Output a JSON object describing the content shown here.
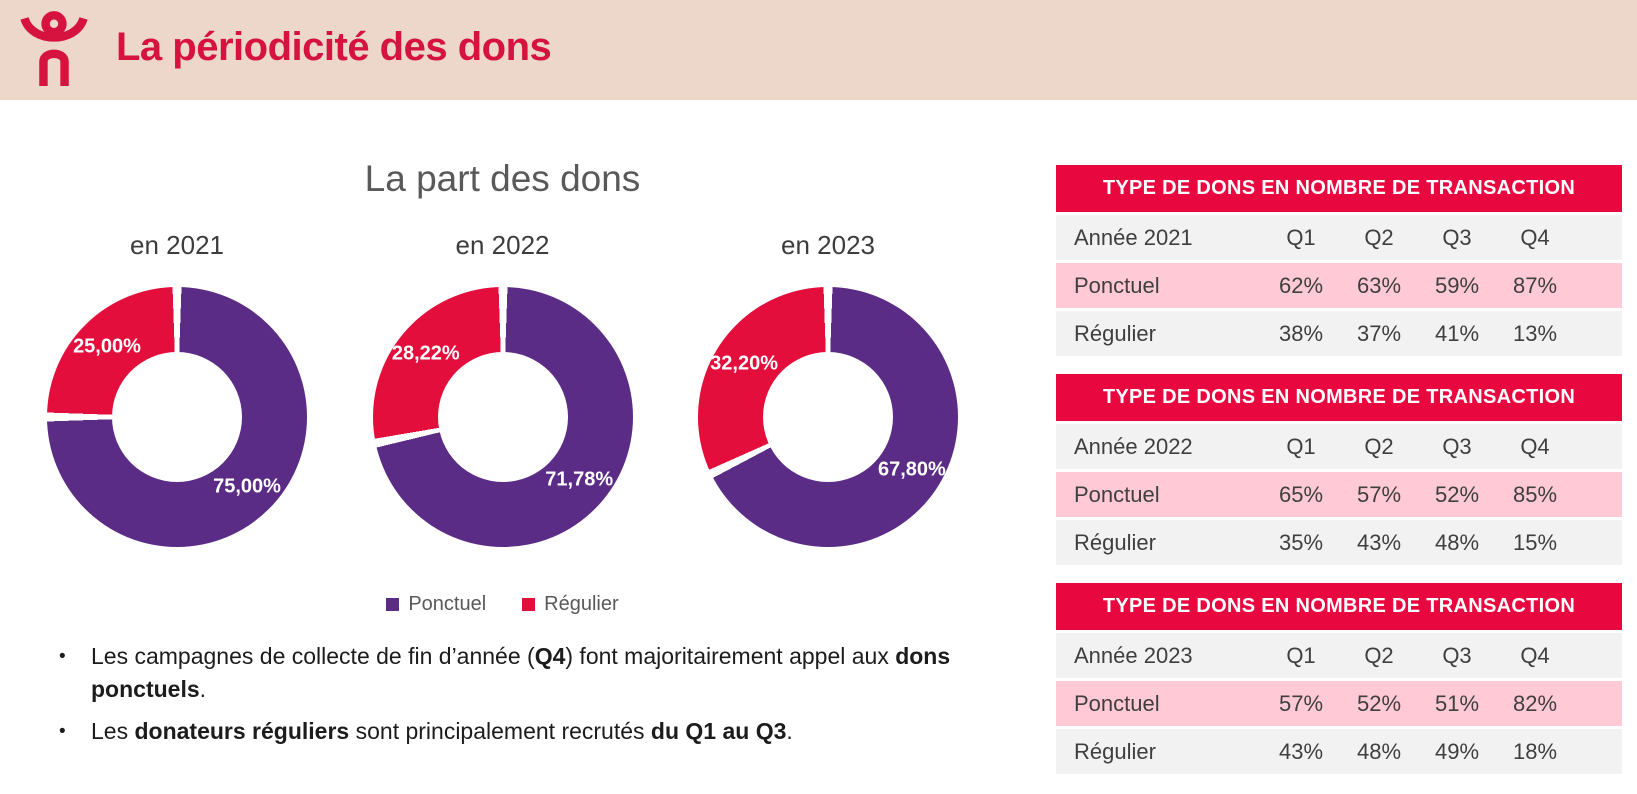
{
  "header": {
    "title": "La périodicité des dons",
    "icon": "person-raised-arms-icon",
    "background_color": "#ecd7ca",
    "title_color": "#d6123f"
  },
  "colors": {
    "ponctuel_purple": "#5b2c86",
    "regulier_red": "#e30e3c",
    "table_header_red": "#e8073f",
    "row_pink": "#ffc9d6",
    "row_gray": "#f2f2f2"
  },
  "main": {
    "chart_section_title": "La part des dons",
    "legend": {
      "items": [
        {
          "label": "Ponctuel",
          "color": "#5b2c86"
        },
        {
          "label": "Régulier",
          "color": "#e30e3c"
        }
      ]
    },
    "bullets": [
      {
        "segments": [
          {
            "t": "Les campagnes de collecte de fin d’année ("
          },
          {
            "t": "Q4",
            "b": true
          },
          {
            "t": ") font majoritairement appel aux "
          },
          {
            "t": "dons ponctuels",
            "b": true
          },
          {
            "t": "."
          }
        ]
      },
      {
        "segments": [
          {
            "t": "Les "
          },
          {
            "t": "donateurs réguliers",
            "b": true
          },
          {
            "t": " sont principalement recrutés "
          },
          {
            "t": "du Q1 au Q3",
            "b": true
          },
          {
            "t": "."
          }
        ]
      }
    ]
  },
  "chart_data": [
    {
      "type": "pie",
      "title": "en 2021",
      "donut": true,
      "legend_position": "bottom",
      "series": [
        {
          "name": "Ponctuel",
          "value": 75.0,
          "label": "75,00%",
          "color": "#5b2c86"
        },
        {
          "name": "Régulier",
          "value": 25.0,
          "label": "25,00%",
          "color": "#e30e3c"
        }
      ]
    },
    {
      "type": "pie",
      "title": "en 2022",
      "donut": true,
      "legend_position": "bottom",
      "series": [
        {
          "name": "Ponctuel",
          "value": 71.78,
          "label": "71,78%",
          "color": "#5b2c86"
        },
        {
          "name": "Régulier",
          "value": 28.22,
          "label": "28,22%",
          "color": "#e30e3c"
        }
      ]
    },
    {
      "type": "pie",
      "title": "en 2023",
      "donut": true,
      "legend_position": "bottom",
      "series": [
        {
          "name": "Ponctuel",
          "value": 67.8,
          "label": "67,80%",
          "color": "#5b2c86"
        },
        {
          "name": "Régulier",
          "value": 32.2,
          "label": "32,20%",
          "color": "#e30e3c"
        }
      ]
    }
  ],
  "tables": [
    {
      "header": "TYPE DE DONS EN NOMBRE DE TRANSACTION",
      "rows": [
        {
          "label": "Année 2021",
          "cells": [
            "Q1",
            "Q2",
            "Q3",
            "Q4"
          ],
          "style": "gray"
        },
        {
          "label": "Ponctuel",
          "cells": [
            "62%",
            "63%",
            "59%",
            "87%"
          ],
          "style": "pink"
        },
        {
          "label": "Régulier",
          "cells": [
            "38%",
            "37%",
            "41%",
            "13%"
          ],
          "style": "gray"
        }
      ]
    },
    {
      "header": "TYPE DE DONS EN NOMBRE DE TRANSACTION",
      "rows": [
        {
          "label": "Année 2022",
          "cells": [
            "Q1",
            "Q2",
            "Q3",
            "Q4"
          ],
          "style": "gray"
        },
        {
          "label": "Ponctuel",
          "cells": [
            "65%",
            "57%",
            "52%",
            "85%"
          ],
          "style": "pink"
        },
        {
          "label": "Régulier",
          "cells": [
            "35%",
            "43%",
            "48%",
            "15%"
          ],
          "style": "gray"
        }
      ]
    },
    {
      "header": "TYPE DE DONS EN NOMBRE DE TRANSACTION",
      "rows": [
        {
          "label": "Année 2023",
          "cells": [
            "Q1",
            "Q2",
            "Q3",
            "Q4"
          ],
          "style": "gray"
        },
        {
          "label": "Ponctuel",
          "cells": [
            "57%",
            "52%",
            "51%",
            "82%"
          ],
          "style": "pink"
        },
        {
          "label": "Régulier",
          "cells": [
            "43%",
            "48%",
            "49%",
            "18%"
          ],
          "style": "gray"
        }
      ]
    }
  ]
}
